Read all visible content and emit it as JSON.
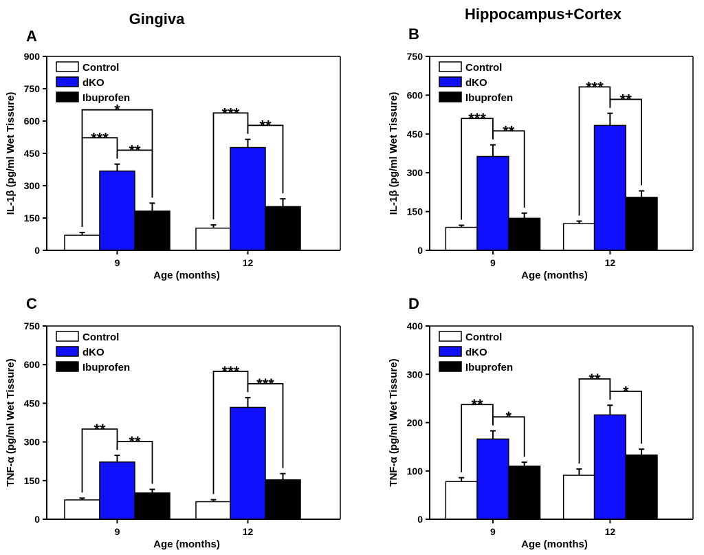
{
  "figure": {
    "column_titles": [
      "Gingiva",
      "Hippocampus+Cortex"
    ]
  },
  "colors": {
    "Control": "#ffffff",
    "dKO": "#1010ff",
    "Ibuprofen": "#000000"
  },
  "chart_data": [
    {
      "type": "bar",
      "panel": "A",
      "tissue": "Gingiva",
      "xlabel": "Age (months)",
      "ylabel": "IL-1β (pg/ml Wet Tissure)",
      "categories": [
        "9",
        "12"
      ],
      "ylim": [
        0,
        900
      ],
      "yticks": [
        0,
        150,
        300,
        450,
        600,
        750,
        900
      ],
      "legend": [
        "Control",
        "dKO",
        "Ibuprofen"
      ],
      "series": [
        {
          "name": "Control",
          "values": [
            70,
            103
          ],
          "errors": [
            13,
            15
          ]
        },
        {
          "name": "dKO",
          "values": [
            368,
            477
          ],
          "errors": [
            32,
            38
          ]
        },
        {
          "name": "Ibuprofen",
          "values": [
            182,
            203
          ],
          "errors": [
            37,
            36
          ]
        }
      ],
      "annotations": [
        {
          "group": 0,
          "pair": [
            0,
            1
          ],
          "label": "***"
        },
        {
          "group": 0,
          "pair": [
            1,
            2
          ],
          "label": "**"
        },
        {
          "group": 0,
          "pair": [
            0,
            2
          ],
          "label": "*"
        },
        {
          "group": 1,
          "pair": [
            0,
            1
          ],
          "label": "***"
        },
        {
          "group": 1,
          "pair": [
            1,
            2
          ],
          "label": "**"
        }
      ]
    },
    {
      "type": "bar",
      "panel": "B",
      "tissue": "Hippocampus+Cortex",
      "xlabel": "Age (months)",
      "ylabel": "IL-1β (pg/ml Wet Tissure)",
      "categories": [
        "9",
        "12"
      ],
      "ylim": [
        0,
        750
      ],
      "yticks": [
        0,
        150,
        300,
        450,
        600,
        750
      ],
      "legend": [
        "Control",
        "dKO",
        "Ibuprofen"
      ],
      "series": [
        {
          "name": "Control",
          "values": [
            89,
            103
          ],
          "errors": [
            8,
            10
          ]
        },
        {
          "name": "dKO",
          "values": [
            363,
            483
          ],
          "errors": [
            45,
            47
          ]
        },
        {
          "name": "Ibuprofen",
          "values": [
            124,
            205
          ],
          "errors": [
            20,
            25
          ]
        }
      ],
      "annotations": [
        {
          "group": 0,
          "pair": [
            0,
            1
          ],
          "label": "***"
        },
        {
          "group": 0,
          "pair": [
            1,
            2
          ],
          "label": "**"
        },
        {
          "group": 1,
          "pair": [
            0,
            1
          ],
          "label": "***"
        },
        {
          "group": 1,
          "pair": [
            1,
            2
          ],
          "label": "**"
        }
      ]
    },
    {
      "type": "bar",
      "panel": "C",
      "tissue": "Gingiva",
      "xlabel": "Age (months)",
      "ylabel": "TNF-α (pg/ml Wet Tissure)",
      "categories": [
        "9",
        "12"
      ],
      "ylim": [
        0,
        750
      ],
      "yticks": [
        0,
        150,
        300,
        450,
        600,
        750
      ],
      "legend": [
        "Control",
        "dKO",
        "Ibuprofen"
      ],
      "series": [
        {
          "name": "Control",
          "values": [
            75,
            68
          ],
          "errors": [
            7,
            8
          ]
        },
        {
          "name": "dKO",
          "values": [
            222,
            434
          ],
          "errors": [
            26,
            38
          ]
        },
        {
          "name": "Ibuprofen",
          "values": [
            102,
            153
          ],
          "errors": [
            14,
            24
          ]
        }
      ],
      "annotations": [
        {
          "group": 0,
          "pair": [
            0,
            1
          ],
          "label": "**"
        },
        {
          "group": 0,
          "pair": [
            1,
            2
          ],
          "label": "**"
        },
        {
          "group": 1,
          "pair": [
            0,
            1
          ],
          "label": "***"
        },
        {
          "group": 1,
          "pair": [
            1,
            2
          ],
          "label": "***"
        }
      ]
    },
    {
      "type": "bar",
      "panel": "D",
      "tissue": "Hippocampus+Cortex",
      "xlabel": "Age (months)",
      "ylabel": "TNF-α (pg/ml Wet Tissure)",
      "categories": [
        "9",
        "12"
      ],
      "ylim": [
        0,
        400
      ],
      "yticks": [
        0,
        100,
        200,
        300,
        400
      ],
      "legend": [
        "Control",
        "dKO",
        "Ibuprofen"
      ],
      "series": [
        {
          "name": "Control",
          "values": [
            78,
            91
          ],
          "errors": [
            8,
            13
          ]
        },
        {
          "name": "dKO",
          "values": [
            166,
            216
          ],
          "errors": [
            17,
            20
          ]
        },
        {
          "name": "Ibuprofen",
          "values": [
            110,
            133
          ],
          "errors": [
            8,
            12
          ]
        }
      ],
      "annotations": [
        {
          "group": 0,
          "pair": [
            0,
            1
          ],
          "label": "**"
        },
        {
          "group": 0,
          "pair": [
            1,
            2
          ],
          "label": "*"
        },
        {
          "group": 1,
          "pair": [
            0,
            1
          ],
          "label": "**"
        },
        {
          "group": 1,
          "pair": [
            1,
            2
          ],
          "label": "*"
        }
      ]
    }
  ]
}
